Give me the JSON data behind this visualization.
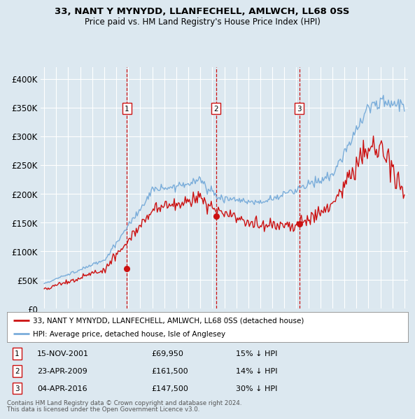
{
  "title1": "33, NANT Y MYNYDD, LLANFECHELL, AMLWCH, LL68 0SS",
  "title2": "Price paid vs. HM Land Registry's House Price Index (HPI)",
  "legend_line1": "33, NANT Y MYNYDD, LLANFECHELL, AMLWCH, LL68 0SS (detached house)",
  "legend_line2": "HPI: Average price, detached house, Isle of Anglesey",
  "footer1": "Contains HM Land Registry data © Crown copyright and database right 2024.",
  "footer2": "This data is licensed under the Open Government Licence v3.0.",
  "transactions": [
    {
      "num": 1,
      "date": "15-NOV-2001",
      "price": "£69,950",
      "note": "15% ↓ HPI",
      "year": 2001.88
    },
    {
      "num": 2,
      "date": "23-APR-2009",
      "price": "£161,500",
      "note": "14% ↓ HPI",
      "year": 2009.31
    },
    {
      "num": 3,
      "date": "04-APR-2016",
      "price": "£147,500",
      "note": "30% ↓ HPI",
      "year": 2016.26
    }
  ],
  "transaction_prices": [
    69950,
    161500,
    147500
  ],
  "background_color": "#dce8f0",
  "plot_bg_color": "#dce8f0",
  "grid_color": "#ffffff",
  "hpi_color": "#7aadda",
  "price_color": "#cc1111",
  "dashed_line_color": "#cc1111",
  "ylim": [
    0,
    420000
  ],
  "yticks": [
    0,
    50000,
    100000,
    150000,
    200000,
    250000,
    300000,
    350000,
    400000
  ],
  "ytick_labels": [
    "£0",
    "£50K",
    "£100K",
    "£150K",
    "£200K",
    "£250K",
    "£300K",
    "£350K",
    "£400K"
  ],
  "xlim_left": 1994.7,
  "xlim_right": 2025.3
}
